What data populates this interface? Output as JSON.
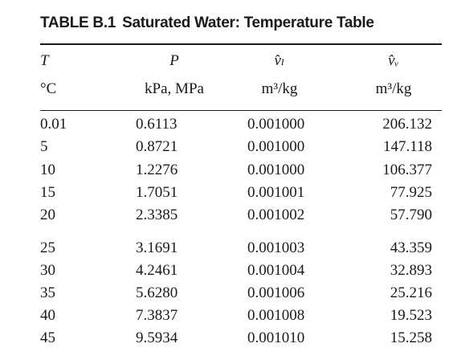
{
  "title": {
    "number": "TABLE B.1",
    "text": "Saturated Water: Temperature Table"
  },
  "columns": [
    {
      "symbol": "T",
      "unit": "°C"
    },
    {
      "symbol": "P",
      "unit": "kPa, MPa"
    },
    {
      "symbol": "v̂ₗ",
      "unit": "m³/kg"
    },
    {
      "symbol": "v̂ᵥ",
      "unit": "m³/kg"
    }
  ],
  "rows": [
    {
      "t": "0.01",
      "p": "0.6113",
      "vf": "0.001000",
      "vg": "206.132"
    },
    {
      "t": "5",
      "p": "0.8721",
      "vf": "0.001000",
      "vg": "147.118"
    },
    {
      "t": "10",
      "p": "1.2276",
      "vf": "0.001000",
      "vg": "106.377"
    },
    {
      "t": "15",
      "p": "1.7051",
      "vf": "0.001001",
      "vg": "77.925"
    },
    {
      "t": "20",
      "p": "2.3385",
      "vf": "0.001002",
      "vg": "57.790"
    },
    {
      "t": "25",
      "p": "3.1691",
      "vf": "0.001003",
      "vg": "43.359"
    },
    {
      "t": "30",
      "p": "4.2461",
      "vf": "0.001004",
      "vg": "32.893"
    },
    {
      "t": "35",
      "p": "5.6280",
      "vf": "0.001006",
      "vg": "25.216"
    },
    {
      "t": "40",
      "p": "7.3837",
      "vf": "0.001008",
      "vg": "19.523"
    },
    {
      "t": "45",
      "p": "9.5934",
      "vf": "0.001010",
      "vg": "15.258"
    }
  ]
}
